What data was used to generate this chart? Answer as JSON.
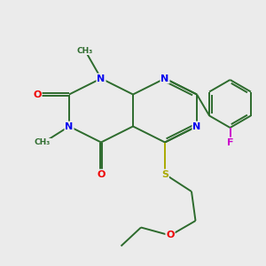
{
  "background_color": "#ebebeb",
  "bond_color": "#2d6b2d",
  "atom_colors": {
    "N": "#0000ee",
    "O": "#ee0000",
    "S": "#aaaa00",
    "F": "#cc00cc",
    "C": "#2d6b2d"
  },
  "figsize": [
    3.0,
    3.0
  ],
  "dpi": 100,
  "lw": 1.4
}
